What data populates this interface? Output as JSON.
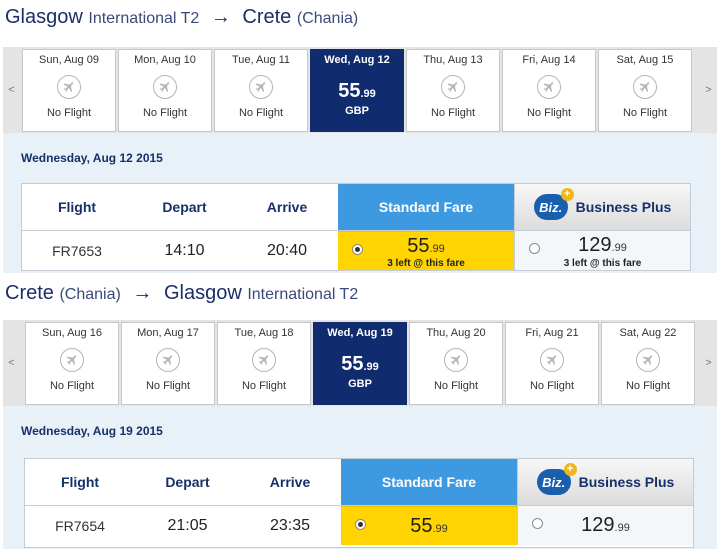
{
  "outbound": {
    "title": {
      "from_city": "Glasgow",
      "from_sub": "International T2",
      "arrow": "→",
      "to_city": "Crete",
      "to_sub": "(Chania)"
    },
    "scroll_left": "<",
    "scroll_right": ">",
    "days": [
      {
        "date": "Sun, Aug 09",
        "status": "No Flight"
      },
      {
        "date": "Mon, Aug 10",
        "status": "No Flight"
      },
      {
        "date": "Tue, Aug 11",
        "status": "No Flight"
      },
      {
        "date": "Wed, Aug 12",
        "price_main": "55",
        "price_cents": ".99",
        "currency": "GBP"
      },
      {
        "date": "Thu, Aug 13",
        "status": "No Flight"
      },
      {
        "date": "Fri, Aug 14",
        "status": "No Flight"
      },
      {
        "date": "Sat, Aug 15",
        "status": "No Flight"
      }
    ],
    "selected_date": "Wednesday, Aug 12 2015",
    "headers": {
      "flight": "Flight",
      "depart": "Depart",
      "arrive": "Arrive",
      "standard": "Standard Fare",
      "biz_logo": "Biz.",
      "biz_plus": "+",
      "business": "Business Plus"
    },
    "row": {
      "flight": "FR7653",
      "depart": "14:10",
      "arrive": "20:40",
      "standard_main": "55",
      "standard_cents": ".99",
      "standard_note": "3 left @ this fare",
      "business_main": "129",
      "business_cents": ".99",
      "business_note": "3 left @ this fare"
    }
  },
  "return": {
    "title": {
      "from_city": "Crete",
      "from_sub": "(Chania)",
      "arrow": "→",
      "to_city": "Glasgow",
      "to_sub": "International T2"
    },
    "scroll_left": "<",
    "scroll_right": ">",
    "days": [
      {
        "date": "Sun, Aug 16",
        "status": "No Flight"
      },
      {
        "date": "Mon, Aug 17",
        "status": "No Flight"
      },
      {
        "date": "Tue, Aug 18",
        "status": "No Flight"
      },
      {
        "date": "Wed, Aug 19",
        "price_main": "55",
        "price_cents": ".99",
        "currency": "GBP"
      },
      {
        "date": "Thu, Aug 20",
        "status": "No Flight"
      },
      {
        "date": "Fri, Aug 21",
        "status": "No Flight"
      },
      {
        "date": "Sat, Aug 22",
        "status": "No Flight"
      }
    ],
    "selected_date": "Wednesday, Aug 19 2015",
    "headers": {
      "flight": "Flight",
      "depart": "Depart",
      "arrive": "Arrive",
      "standard": "Standard Fare",
      "biz_logo": "Biz.",
      "biz_plus": "+",
      "business": "Business Plus"
    },
    "row": {
      "flight": "FR7654",
      "depart": "21:05",
      "arrive": "23:35",
      "standard_main": "55",
      "standard_cents": ".99",
      "business_main": "129",
      "business_cents": ".99"
    }
  },
  "icons": {
    "no_flight": "airplane-icon",
    "radio_selected": "radio-selected-icon",
    "radio_empty": "radio-empty-icon"
  },
  "colors": {
    "selected_day": "#102c6e",
    "standard_header": "#3e9ae0",
    "standard_fare": "#ffd400",
    "biz_logo": "#1a5fae"
  }
}
